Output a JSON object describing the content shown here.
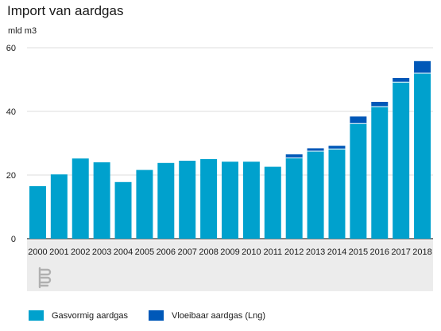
{
  "chart_data": {
    "type": "bar",
    "stacked": true,
    "title": "Import van aardgas",
    "ylabel": "mld m3",
    "xlabel": "",
    "ylim": [
      0,
      60
    ],
    "yticks": [
      0,
      20,
      40,
      60
    ],
    "grid": true,
    "legend_position": "bottom",
    "categories": [
      "2000",
      "2001",
      "2002",
      "2003",
      "2004",
      "2005",
      "2006",
      "2007",
      "2008",
      "2009",
      "2010",
      "2011",
      "2012",
      "2013",
      "2014",
      "2015",
      "2016",
      "2017",
      "2018"
    ],
    "series": [
      {
        "name": "Gasvormig aardgas",
        "color": "#00a1cd",
        "values": [
          16.5,
          20.2,
          25.2,
          24.0,
          17.8,
          21.6,
          23.8,
          24.5,
          25.0,
          24.2,
          24.2,
          22.6,
          25.4,
          27.5,
          28.2,
          36.2,
          41.5,
          49.2,
          52.0
        ]
      },
      {
        "name": "Vloeibaar aardgas (Lng)",
        "color": "#0058b8",
        "values": [
          0,
          0,
          0,
          0,
          0,
          0,
          0,
          0,
          0,
          0,
          0,
          0,
          1.1,
          0.9,
          1.0,
          2.2,
          1.5,
          1.3,
          3.8
        ]
      }
    ]
  },
  "logo": {
    "icon": "cbs-logo-icon"
  }
}
